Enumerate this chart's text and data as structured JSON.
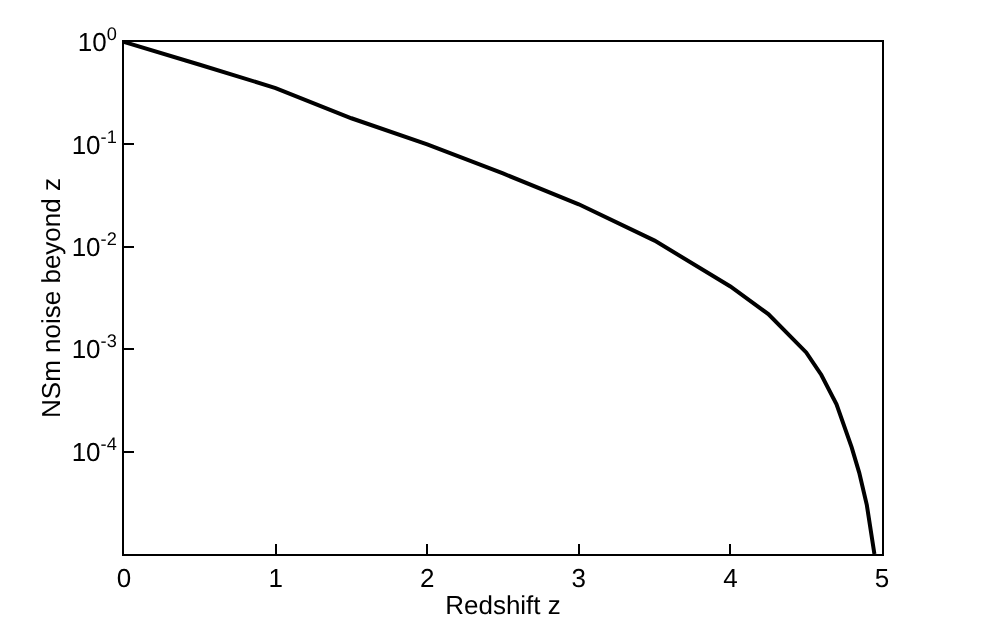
{
  "chart_data": {
    "type": "line",
    "xlabel": "Redshift z",
    "ylabel": "NSm noise beyond z",
    "log": "y",
    "grid": false,
    "marker": "none",
    "line_style": "solid",
    "xlim": [
      0,
      5
    ],
    "xticks": [
      0,
      1,
      2,
      3,
      4,
      5
    ],
    "ylim": [
      1e-05,
      1
    ],
    "yticks": [
      {
        "value": 1,
        "label": "10$^{0}$"
      },
      {
        "value": 0.1,
        "label": "10$^{-1}$"
      },
      {
        "value": 0.01,
        "label": "10$^{-2}$"
      },
      {
        "value": 0.001,
        "label": "10$^{-3}$"
      },
      {
        "value": 0.0001,
        "label": "10$^{-4}$"
      }
    ],
    "series": [
      {
        "color": "#000000",
        "x": [
          0,
          0.5,
          1,
          1.5,
          2,
          2.5,
          3,
          3.5,
          4,
          4.25,
          4.5,
          4.6,
          4.7,
          4.8,
          4.85,
          4.9,
          4.95
        ],
        "values": [
          1,
          0.6,
          0.355,
          0.18,
          0.1,
          0.052,
          0.026,
          0.0115,
          0.0041,
          0.0022,
          0.00093,
          0.00056,
          0.00029,
          0.00011,
          6.2e-05,
          3e-05,
          1e-05
        ]
      }
    ]
  }
}
